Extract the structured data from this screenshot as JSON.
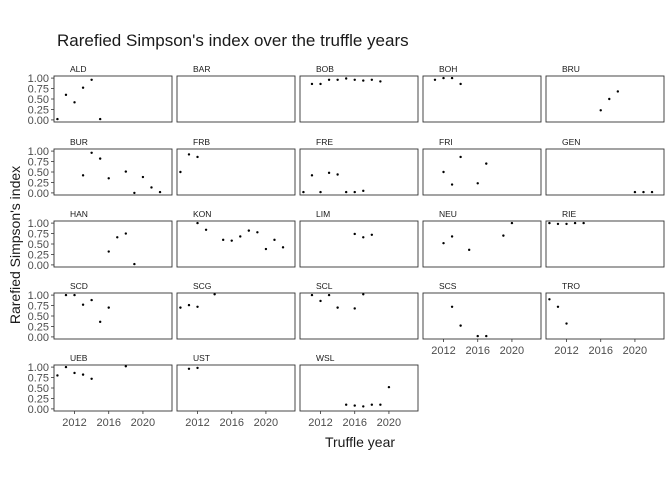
{
  "chart_data": {
    "type": "scatter",
    "title": "Rarefied Simpson's index over the truffle years",
    "xlabel": "Truffle year",
    "ylabel": "Rarefied Simpson's index",
    "xlim": [
      2009.6,
      2023.4
    ],
    "ylim": [
      -0.05,
      1.05
    ],
    "xticks": [
      2012,
      2016,
      2020
    ],
    "xtick_labels": [
      "2012",
      "2016",
      "2020"
    ],
    "yticks": [
      0,
      0.25,
      0.5,
      0.75,
      1
    ],
    "ytick_labels": [
      "0.00",
      "0.25",
      "0.50",
      "0.75",
      "1.00"
    ],
    "facet_columns": 5,
    "grid": false,
    "panels": [
      {
        "name": "ALD",
        "x": [
          2010,
          2011,
          2012,
          2013,
          2014,
          2015
        ],
        "y": [
          0.02,
          0.6,
          0.42,
          0.77,
          0.96,
          0.02
        ]
      },
      {
        "name": "BAR",
        "x": [],
        "y": []
      },
      {
        "name": "BOB",
        "x": [
          2011,
          2012,
          2013,
          2014,
          2015,
          2016,
          2017,
          2018,
          2019
        ],
        "y": [
          0.86,
          0.86,
          0.96,
          0.96,
          0.99,
          0.96,
          0.94,
          0.96,
          0.92
        ]
      },
      {
        "name": "BOH",
        "x": [
          2011,
          2012,
          2013,
          2014
        ],
        "y": [
          0.96,
          1.0,
          1.0,
          0.86
        ]
      },
      {
        "name": "BRU",
        "x": [
          2016,
          2017,
          2018
        ],
        "y": [
          0.23,
          0.5,
          0.68
        ]
      },
      {
        "name": "BUR",
        "x": [
          2013,
          2014,
          2015,
          2016,
          2018,
          2019,
          2020,
          2021,
          2022
        ],
        "y": [
          0.42,
          0.96,
          0.82,
          0.35,
          0.51,
          0.0,
          0.38,
          0.13,
          0.02
        ]
      },
      {
        "name": "FRB",
        "x": [
          2010,
          2011,
          2012
        ],
        "y": [
          0.5,
          0.92,
          0.86
        ]
      },
      {
        "name": "FRE",
        "x": [
          2010,
          2011,
          2012,
          2013,
          2014,
          2015,
          2016,
          2017
        ],
        "y": [
          0.02,
          0.42,
          0.02,
          0.48,
          0.44,
          0.02,
          0.02,
          0.05
        ]
      },
      {
        "name": "FRI",
        "x": [
          2012,
          2013,
          2014,
          2016,
          2017
        ],
        "y": [
          0.5,
          0.2,
          0.86,
          0.23,
          0.7
        ]
      },
      {
        "name": "GEN",
        "x": [
          2020,
          2021,
          2022
        ],
        "y": [
          0.02,
          0.02,
          0.02
        ]
      },
      {
        "name": "HAN",
        "x": [
          2016,
          2017,
          2018,
          2019
        ],
        "y": [
          0.32,
          0.66,
          0.75,
          0.02
        ]
      },
      {
        "name": "KON",
        "x": [
          2012,
          2013,
          2015,
          2016,
          2017,
          2018,
          2019,
          2020,
          2021,
          2022
        ],
        "y": [
          1.0,
          0.84,
          0.6,
          0.58,
          0.68,
          0.82,
          0.78,
          0.38,
          0.6,
          0.42
        ]
      },
      {
        "name": "LIM",
        "x": [
          2016,
          2017,
          2018
        ],
        "y": [
          0.74,
          0.66,
          0.72
        ]
      },
      {
        "name": "NEU",
        "x": [
          2012,
          2013,
          2015,
          2019,
          2020
        ],
        "y": [
          0.52,
          0.68,
          0.36,
          0.7,
          1.0
        ]
      },
      {
        "name": "RIE",
        "x": [
          2010,
          2011,
          2012,
          2013,
          2014
        ],
        "y": [
          1.0,
          0.98,
          0.98,
          1.0,
          1.0
        ]
      },
      {
        "name": "SCD",
        "x": [
          2011,
          2012,
          2013,
          2014,
          2015,
          2016
        ],
        "y": [
          1.0,
          1.0,
          0.77,
          0.88,
          0.36,
          0.7
        ]
      },
      {
        "name": "SCG",
        "x": [
          2010,
          2011,
          2012,
          2014
        ],
        "y": [
          0.7,
          0.76,
          0.72,
          1.02
        ]
      },
      {
        "name": "SCL",
        "x": [
          2011,
          2012,
          2013,
          2014,
          2016,
          2017
        ],
        "y": [
          1.0,
          0.86,
          1.0,
          0.7,
          0.68,
          1.02
        ]
      },
      {
        "name": "SCS",
        "x": [
          2013,
          2014,
          2016,
          2017
        ],
        "y": [
          0.72,
          0.27,
          0.02,
          0.02
        ]
      },
      {
        "name": "TRO",
        "x": [
          2010,
          2011,
          2012
        ],
        "y": [
          0.9,
          0.72,
          0.32
        ]
      },
      {
        "name": "UEB",
        "x": [
          2010,
          2011,
          2012,
          2013,
          2014,
          2018
        ],
        "y": [
          0.8,
          1.0,
          0.86,
          0.82,
          0.72,
          1.02
        ]
      },
      {
        "name": "UST",
        "x": [
          2011,
          2012
        ],
        "y": [
          0.96,
          0.98
        ]
      },
      {
        "name": "WSL",
        "x": [
          2015,
          2016,
          2017,
          2018,
          2019,
          2020
        ],
        "y": [
          0.1,
          0.08,
          0.06,
          0.1,
          0.1,
          0.52
        ]
      }
    ]
  }
}
